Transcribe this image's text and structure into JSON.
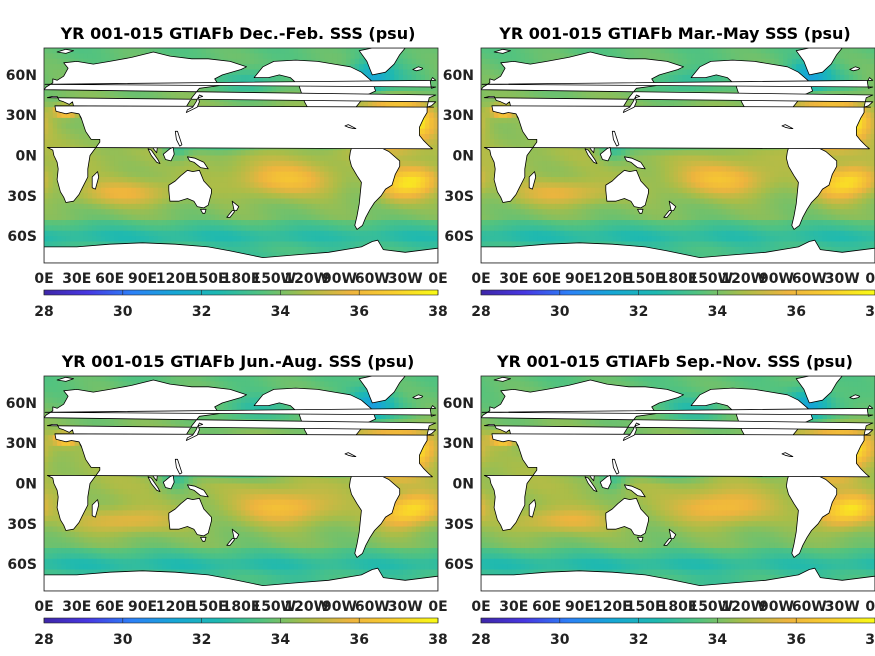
{
  "colorbar": {
    "min": 28,
    "max": 38,
    "ticks": [
      "28",
      "30",
      "32",
      "34",
      "36",
      "38"
    ],
    "colors": [
      "#3e26a8",
      "#4737e2",
      "#2c80f8",
      "#16a7d5",
      "#1eb9b1",
      "#55c37d",
      "#aabd48",
      "#eeb43e",
      "#f9cf2e",
      "#f9fb15"
    ]
  },
  "map": {
    "lat_ticks": [
      "60N",
      "30N",
      "0N",
      "30S",
      "60S"
    ],
    "lon_ticks": [
      "0E",
      "30E",
      "60E",
      "90E",
      "120E",
      "150E",
      "180E",
      "150W",
      "120W",
      "90W",
      "60W",
      "30W",
      "0E"
    ]
  },
  "panels": [
    {
      "title": "YR 001-015 GTIAFb Dec.-Feb. SSS (psu)"
    },
    {
      "title": "YR 001-015 GTIAFb Mar.-May SSS (psu)"
    },
    {
      "title": "YR 001-015 GTIAFb Jun.-Aug. SSS (psu)"
    },
    {
      "title": "YR 001-015 GTIAFb Sep.-Nov. SSS (psu)"
    }
  ]
}
